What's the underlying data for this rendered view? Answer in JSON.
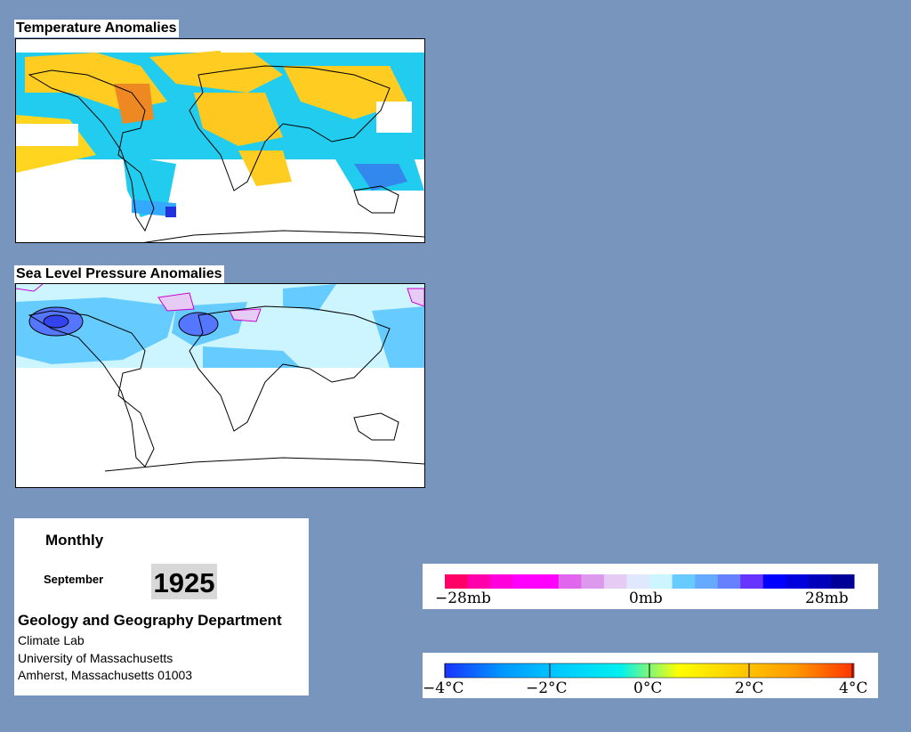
{
  "temperature_map": {
    "title": "Temperature Anomalies"
  },
  "pressure_map": {
    "title": "Sea Level Pressure Anomalies"
  },
  "info": {
    "frequency": "Monthly",
    "month": "September",
    "year": "1925",
    "department": "Geology and Geography Department",
    "lab": "Climate Lab",
    "university": "University of Massachusetts",
    "address": "Amherst, Massachusetts 01003"
  },
  "pressure_legend": {
    "labels": [
      "−28mb",
      "0mb",
      "28mb"
    ],
    "colors": [
      "#ff0066",
      "#ff00aa",
      "#ff00dd",
      "#ff00ff",
      "#ff00ff",
      "#e066ee",
      "#dd99ee",
      "#e6ccf5",
      "#e0e8ff",
      "#ccf5ff",
      "#66ccff",
      "#66aaff",
      "#6680ff",
      "#6633ff",
      "#0000ff",
      "#0000dd",
      "#0000bb",
      "#000099"
    ]
  },
  "temperature_legend": {
    "labels": [
      "−4°C",
      "−2°C",
      "0°C",
      "2°C",
      "4°C"
    ],
    "gradient": [
      "#1a33ff",
      "#0099ff",
      "#00ccff",
      "#00f0f0",
      "#ffff00",
      "#ffcc00",
      "#ff9900",
      "#ff3300"
    ]
  }
}
